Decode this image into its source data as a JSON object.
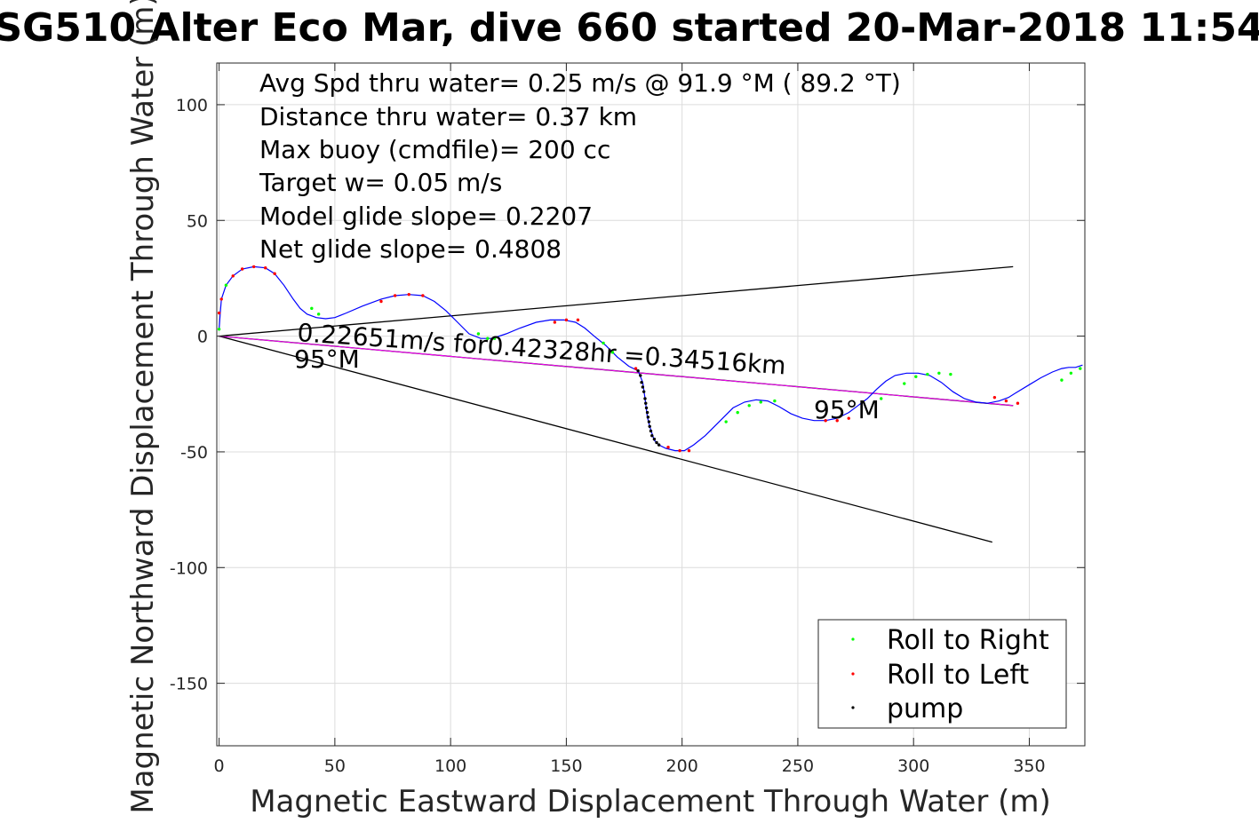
{
  "chart_data": {
    "type": "line",
    "title": "SG510 Alter Eco Mar, dive 660 started 20-Mar-2018 11:54",
    "xlabel": "Magnetic Eastward Displacement Through Water (m)",
    "ylabel": "Magnetic Northward Displacement Through Water (m)",
    "xlim": [
      -1,
      374
    ],
    "ylim": [
      -177,
      118
    ],
    "xticks": [
      0,
      50,
      100,
      150,
      200,
      250,
      300,
      350
    ],
    "yticks": [
      100,
      50,
      0,
      -50,
      -100,
      -150
    ],
    "grid": true,
    "legend_position": "bottom-right",
    "annotations": [
      "Avg Spd thru water=  0.25 m/s @  91.9 °M ( 89.2 °T)",
      "Distance thru water=  0.37 km",
      "Max buoy (cmdfile)= 200 cc",
      "Target w= 0.05 m/s",
      "Model glide slope= 0.2207",
      "Net glide slope= 0.4808"
    ],
    "in_plot_labels": {
      "speed_label": "0.22651m/s for0.42328hr =0.34516km",
      "heading_start": "95°M",
      "heading_end": "95°M"
    },
    "track": {
      "name": "",
      "color": "#0000ff",
      "x": [
        0,
        0.5,
        1,
        3,
        6,
        10,
        15,
        20,
        24,
        28,
        32,
        35,
        38,
        42,
        46,
        50,
        55,
        62,
        70,
        76,
        82,
        88,
        93,
        98,
        103,
        108,
        113,
        118,
        124,
        130,
        137,
        143,
        149,
        154,
        158,
        162,
        167,
        172,
        177,
        181,
        183,
        184,
        184.5,
        185,
        186,
        187,
        188,
        190,
        193,
        197,
        201,
        205,
        210,
        214,
        218,
        222,
        227,
        232,
        237,
        242,
        247,
        252,
        257,
        262,
        267,
        272,
        276,
        280,
        284,
        288,
        292,
        297,
        302,
        307,
        312,
        317,
        322,
        327,
        332,
        337,
        341,
        345,
        350,
        355,
        360,
        364,
        367,
        370,
        373
      ],
      "y": [
        3,
        10,
        16,
        22,
        26,
        29,
        30,
        29.5,
        27,
        22,
        16,
        12,
        9.5,
        8,
        7.5,
        8,
        10,
        13,
        16,
        17.5,
        18,
        17.5,
        15,
        11,
        6,
        1,
        -1,
        -1,
        1,
        3.5,
        6,
        7,
        7,
        6,
        3.5,
        0,
        -4,
        -9,
        -13,
        -15,
        -20,
        -27,
        -31,
        -35,
        -39,
        -42,
        -45,
        -47,
        -48.5,
        -49.5,
        -49.5,
        -47,
        -43,
        -39,
        -35,
        -31,
        -28.5,
        -27.5,
        -28,
        -30.5,
        -33.5,
        -35.5,
        -36.5,
        -36.5,
        -35.5,
        -33,
        -30,
        -27,
        -23,
        -19.5,
        -17,
        -16,
        -16,
        -17,
        -20,
        -24,
        -27,
        -28.5,
        -29,
        -28,
        -26.5,
        -24,
        -21,
        -18,
        -15.5,
        -14,
        -13.5,
        -13.5,
        -12.5
      ]
    },
    "reference_lines": [
      {
        "name": "",
        "color": "#000000",
        "x": [
          0,
          343
        ],
        "y": [
          0,
          30
        ]
      },
      {
        "name": "",
        "color": "#000000",
        "x": [
          0,
          334
        ],
        "y": [
          0,
          -89
        ]
      },
      {
        "name": "",
        "color": "#000000",
        "x": [
          0,
          343
        ],
        "y": [
          0,
          -30
        ]
      },
      {
        "name": "",
        "color": "#ff00ff",
        "x": [
          0,
          343
        ],
        "y": [
          0,
          -30
        ]
      }
    ],
    "series": [
      {
        "name": "Roll to Right",
        "color": "#00ff00",
        "x": [
          0,
          3,
          40,
          43,
          112,
          116,
          119,
          166,
          170,
          219,
          224,
          229,
          234,
          240,
          286,
          296,
          301,
          306,
          311,
          316,
          364,
          368,
          372
        ],
        "y": [
          3,
          22,
          12,
          9.5,
          1,
          -1,
          -1,
          -3,
          -7,
          -37,
          -33,
          -30,
          -28.5,
          -28,
          -27,
          -20.5,
          -17.5,
          -16.5,
          -16,
          -16.5,
          -19,
          -16,
          -14
        ]
      },
      {
        "name": "Roll to Left",
        "color": "#ff0000",
        "x": [
          0,
          1,
          6,
          10,
          15,
          20,
          24,
          70,
          76,
          82,
          88,
          145,
          150,
          155,
          180,
          194,
          199,
          203,
          262,
          267,
          272,
          335,
          340,
          345
        ],
        "y": [
          10,
          16,
          26,
          29,
          30,
          29.5,
          27,
          15,
          17.5,
          18,
          17.5,
          6,
          7,
          7,
          -14,
          -48,
          -49.5,
          -49.5,
          -36.5,
          -36.5,
          -35.5,
          -26.5,
          -28,
          -29
        ]
      },
      {
        "name": "pump",
        "color": "#000000",
        "x": [
          181,
          182,
          182.5,
          183,
          183.5,
          184,
          184.3,
          184.6,
          185,
          185.3,
          185.7,
          186,
          186.5,
          187,
          188,
          189,
          190
        ],
        "y": [
          -15,
          -17,
          -20,
          -22,
          -24,
          -27,
          -29,
          -31,
          -33,
          -35,
          -37,
          -39,
          -41,
          -43,
          -44.5,
          -46,
          -47
        ]
      }
    ]
  }
}
